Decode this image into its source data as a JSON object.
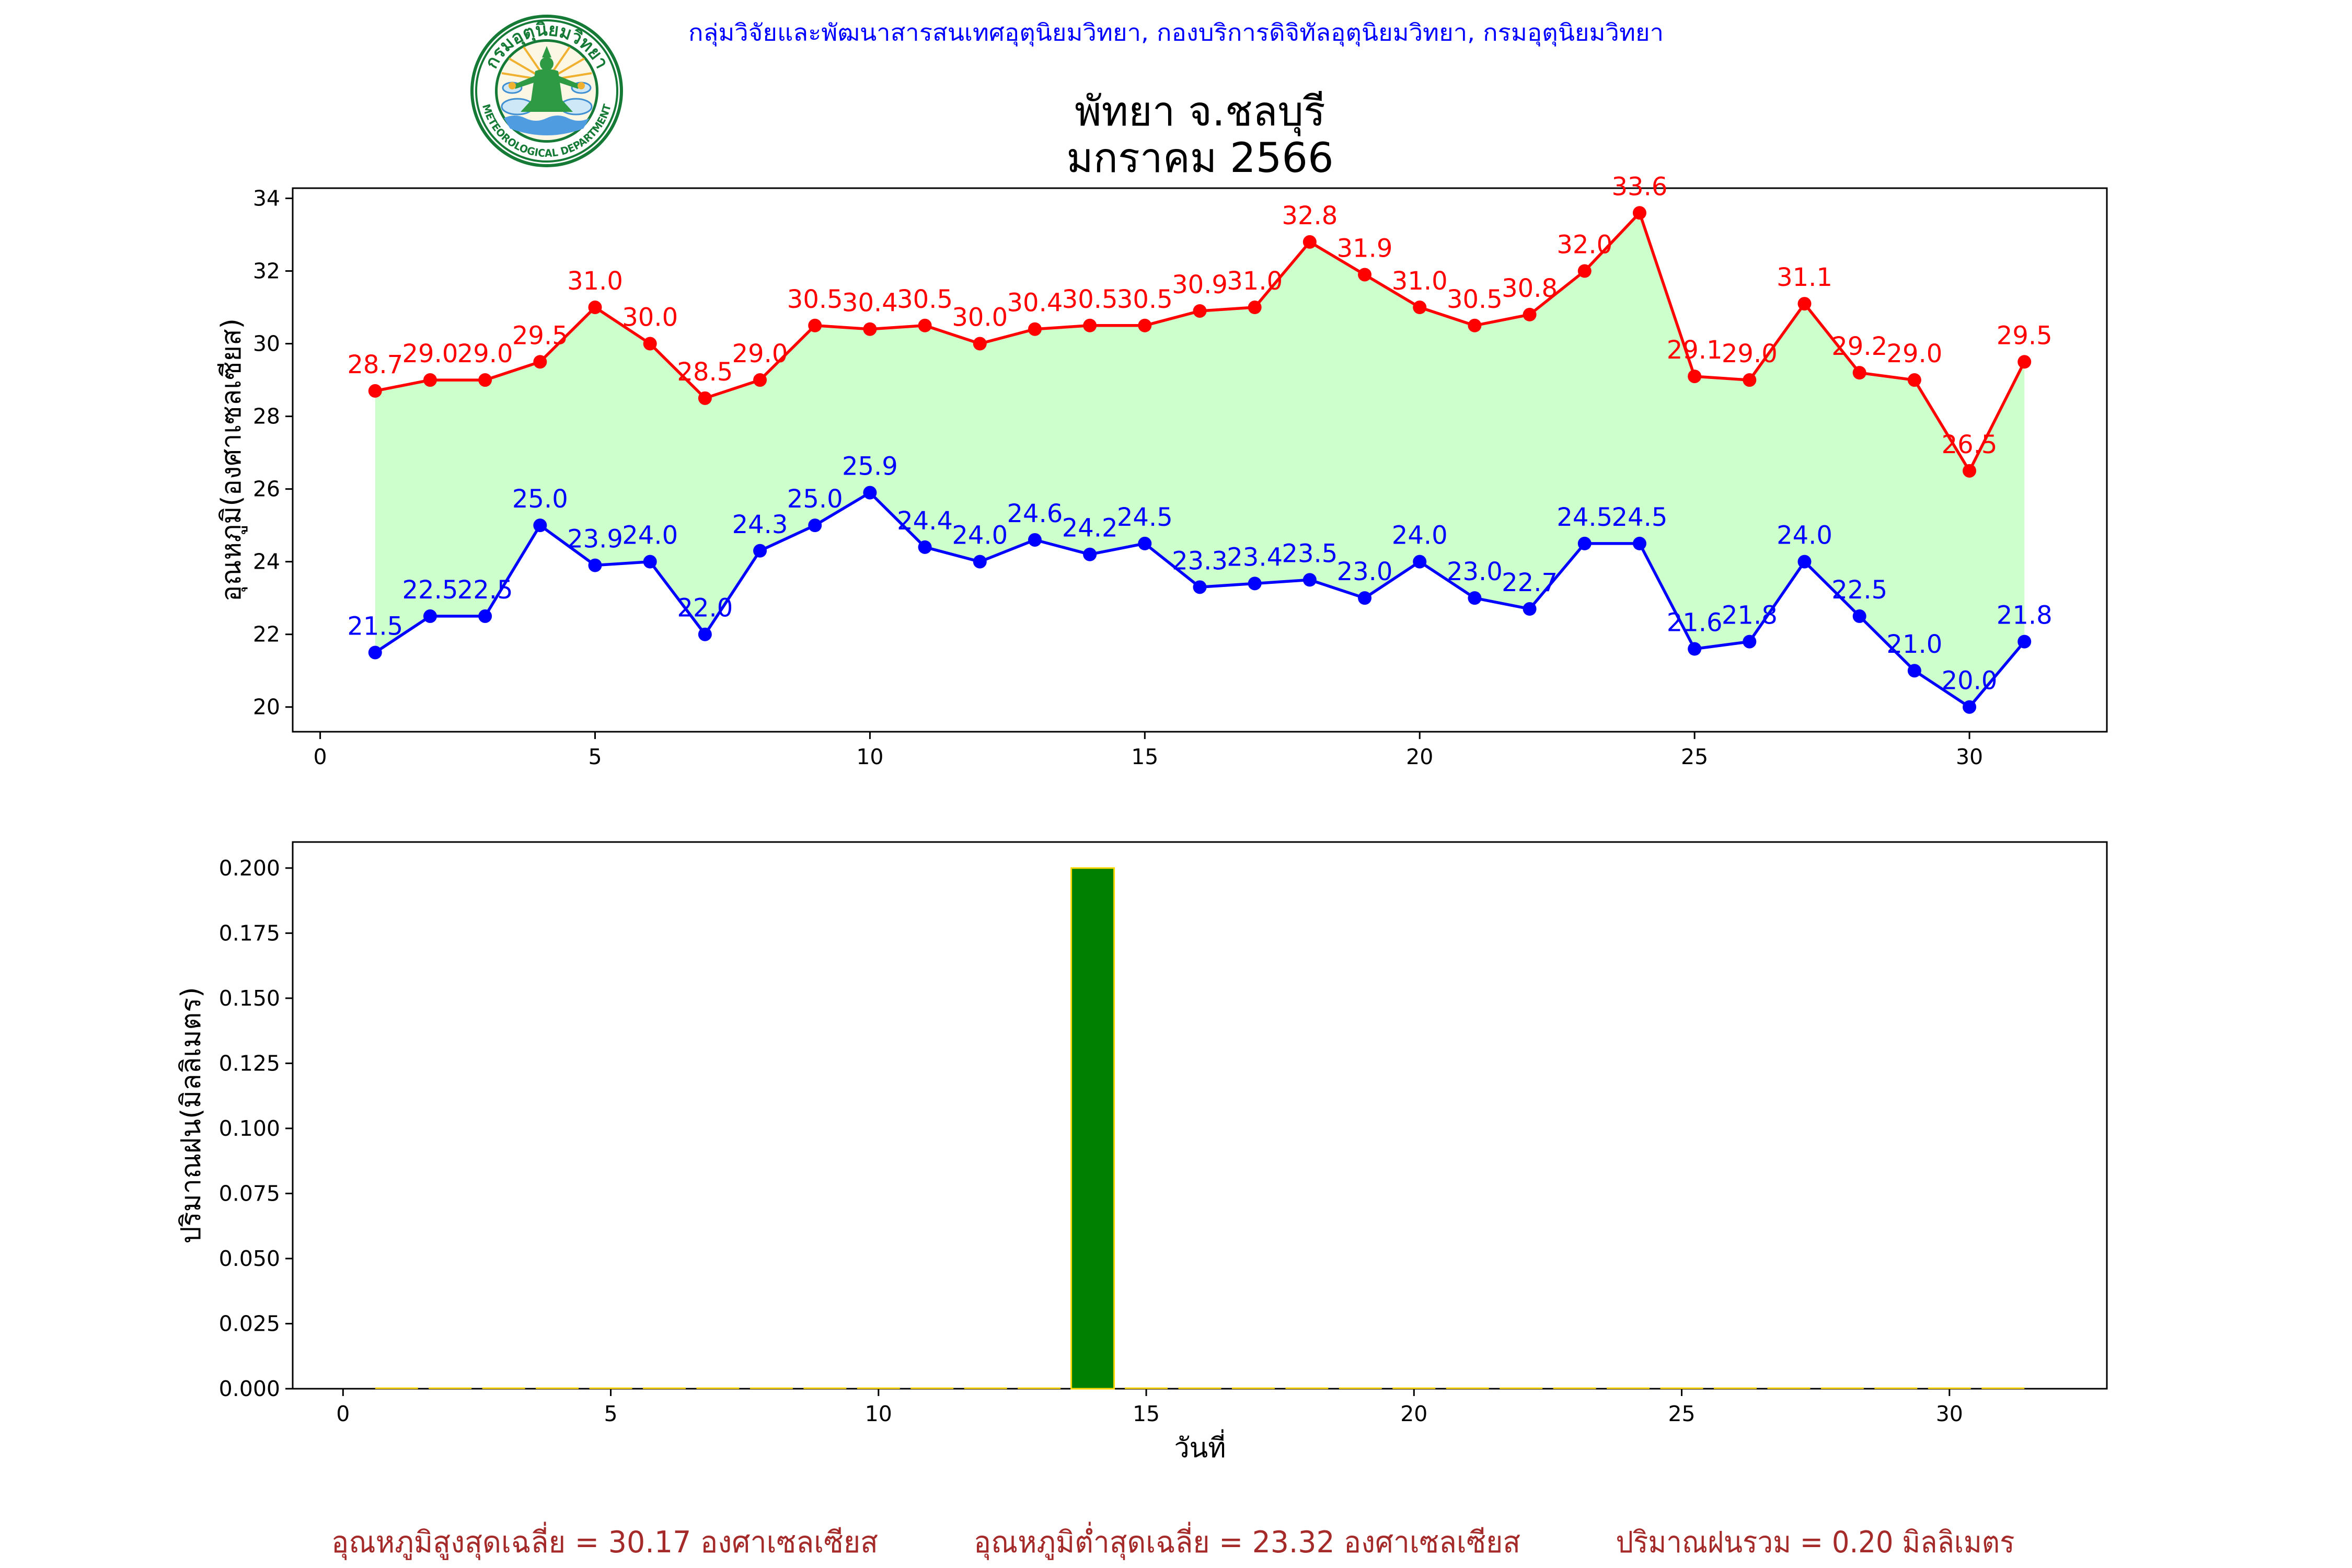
{
  "header": {
    "agency": "กลุ่มวิจัยและพัฒนาสารสนเทศอุตุนิยมวิทยา, กองบริการดิจิทัลอุตุนิยมวิทยา, กรมอุตุนิยมวิทยา",
    "color": "#0000ff"
  },
  "logo": {
    "icon": "meteorological-department-seal-icon",
    "text_th": "กรมอุตุนิยมวิทยา",
    "text_en": "METEOROLOGICAL DEPARTMENT"
  },
  "chart_data": [
    {
      "type": "line",
      "title": "พัทยา จ.ชลบุรี",
      "subtitle": "มกราคม 2566",
      "ylabel": "อุณหภูมิ(องศาเซลเซียส)",
      "x": [
        1,
        2,
        3,
        4,
        5,
        6,
        7,
        8,
        9,
        10,
        11,
        12,
        13,
        14,
        15,
        16,
        17,
        18,
        19,
        20,
        21,
        22,
        23,
        24,
        25,
        26,
        27,
        28,
        29,
        30,
        31
      ],
      "xlim": [
        -0.5,
        32.5
      ],
      "ylim": [
        19.32,
        34.28
      ],
      "xticks": [
        0,
        5,
        10,
        15,
        20,
        25,
        30
      ],
      "xtick_labels": [
        "0",
        "5",
        "10",
        "15",
        "20",
        "25",
        "30"
      ],
      "yticks": [
        20,
        22,
        24,
        26,
        28,
        30,
        32,
        34
      ],
      "ytick_labels": [
        "20",
        "22",
        "24",
        "26",
        "28",
        "30",
        "32",
        "34"
      ],
      "grid": false,
      "fill_between_color": "#ccffcc",
      "series": [
        {
          "color": "#ff0000",
          "values": [
            28.7,
            29.0,
            29.0,
            29.5,
            31.0,
            30.0,
            28.5,
            29.0,
            30.5,
            30.4,
            30.5,
            30.0,
            30.4,
            30.5,
            30.5,
            30.9,
            31.0,
            32.8,
            31.9,
            31.0,
            30.5,
            30.8,
            32.0,
            33.6,
            29.1,
            29.0,
            31.1,
            29.2,
            29.0,
            26.5,
            29.5
          ],
          "data_labels": [
            "28.7",
            "29.0",
            "29.0",
            "29.5",
            "31.0",
            "30.0",
            "28.5",
            "29.0",
            "30.5",
            "30.4",
            "30.5",
            "30.0",
            "30.4",
            "30.5",
            "30.5",
            "30.9",
            "31.0",
            "32.8",
            "31.9",
            "31.0",
            "30.5",
            "30.8",
            "32.0",
            "33.6",
            "29.1",
            "29.0",
            "31.1",
            "29.2",
            "29.0",
            "26.5",
            "29.5"
          ]
        },
        {
          "color": "#0000ff",
          "values": [
            21.5,
            22.5,
            22.5,
            25.0,
            23.9,
            24.0,
            22.0,
            24.3,
            25.0,
            25.9,
            24.4,
            24.0,
            24.6,
            24.2,
            24.5,
            23.3,
            23.4,
            23.5,
            23.0,
            24.0,
            23.0,
            22.7,
            24.5,
            24.5,
            21.6,
            21.8,
            24.0,
            22.5,
            21.0,
            20.0,
            21.8
          ],
          "data_labels": [
            "21.5",
            "22.5",
            "22.5",
            "25.0",
            "23.9",
            "24.0",
            "22.0",
            "24.3",
            "25.0",
            "25.9",
            "24.4",
            "24.0",
            "24.6",
            "24.2",
            "24.5",
            "23.3",
            "23.4",
            "23.5",
            "23.0",
            "24.0",
            "23.0",
            "22.7",
            "24.5",
            "24.5",
            "21.6",
            "21.8",
            "24.0",
            "22.5",
            "21.0",
            "20.0",
            "21.8"
          ]
        }
      ]
    },
    {
      "type": "bar",
      "xlabel": "วันที่",
      "ylabel": "ปริมาณฝน(มิลลิเมตร)",
      "x": [
        1,
        2,
        3,
        4,
        5,
        6,
        7,
        8,
        9,
        10,
        11,
        12,
        13,
        14,
        15,
        16,
        17,
        18,
        19,
        20,
        21,
        22,
        23,
        24,
        25,
        26,
        27,
        28,
        29,
        30,
        31
      ],
      "values": [
        0.0,
        0.0,
        0.0,
        0.0,
        0.0,
        0.0,
        0.0,
        0.0,
        0.0,
        0.0,
        0.0,
        0.0,
        0.0,
        0.2,
        0.0,
        0.0,
        0.0,
        0.0,
        0.0,
        0.0,
        0.0,
        0.0,
        0.0,
        0.0,
        0.0,
        0.0,
        0.0,
        0.0,
        0.0,
        0.0,
        0.0
      ],
      "xlim": [
        -0.94,
        32.94
      ],
      "ylim": [
        0,
        0.21
      ],
      "xticks": [
        0,
        5,
        10,
        15,
        20,
        25,
        30
      ],
      "xtick_labels": [
        "0",
        "5",
        "10",
        "15",
        "20",
        "25",
        "30"
      ],
      "yticks": [
        0,
        0.025,
        0.05,
        0.075,
        0.1,
        0.125,
        0.15,
        0.175,
        0.2
      ],
      "ytick_labels": [
        "0.000",
        "0.025",
        "0.050",
        "0.075",
        "0.100",
        "0.125",
        "0.150",
        "0.175",
        "0.200"
      ],
      "grid": false,
      "bar_color": "#008000",
      "bar_edge_color": "#ffd700"
    }
  ],
  "footer": {
    "max_avg": "อุณหภูมิสูงสุดเฉลี่ย = 30.17 องศาเซลเซียส",
    "min_avg": "อุณหภูมิต่ำสุดเฉลี่ย = 23.32 องศาเซลเซียส",
    "rain_total": "ปริมาณฝนรวม = 0.20 มิลลิเมตร",
    "color": "#a52a2a"
  }
}
